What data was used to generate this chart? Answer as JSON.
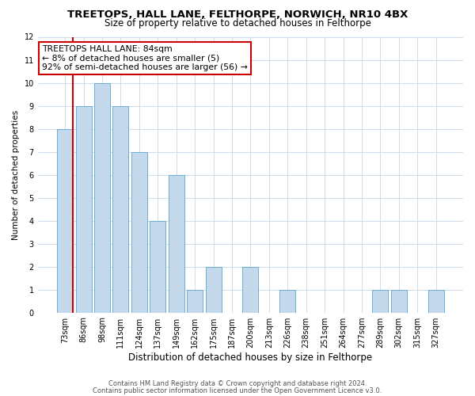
{
  "title": "TREETOPS, HALL LANE, FELTHORPE, NORWICH, NR10 4BX",
  "subtitle": "Size of property relative to detached houses in Felthorpe",
  "xlabel": "Distribution of detached houses by size in Felthorpe",
  "ylabel": "Number of detached properties",
  "bar_labels": [
    "73sqm",
    "86sqm",
    "98sqm",
    "111sqm",
    "124sqm",
    "137sqm",
    "149sqm",
    "162sqm",
    "175sqm",
    "187sqm",
    "200sqm",
    "213sqm",
    "226sqm",
    "238sqm",
    "251sqm",
    "264sqm",
    "277sqm",
    "289sqm",
    "302sqm",
    "315sqm",
    "327sqm"
  ],
  "bar_values": [
    8,
    9,
    10,
    9,
    7,
    4,
    6,
    1,
    2,
    0,
    2,
    0,
    1,
    0,
    0,
    0,
    0,
    1,
    1,
    0,
    1
  ],
  "bar_color": "#c5d9ec",
  "bar_edge_color": "#6aaed6",
  "highlight_edge_color": "#cc0000",
  "ylim": [
    0,
    12
  ],
  "yticks": [
    0,
    1,
    2,
    3,
    4,
    5,
    6,
    7,
    8,
    9,
    10,
    11,
    12
  ],
  "annotation_title": "TREETOPS HALL LANE: 84sqm",
  "annotation_line1": "← 8% of detached houses are smaller (5)",
  "annotation_line2": "92% of semi-detached houses are larger (56) →",
  "annotation_box_edge": "#cc0000",
  "footer_line1": "Contains HM Land Registry data © Crown copyright and database right 2024.",
  "footer_line2": "Contains public sector information licensed under the Open Government Licence v3.0.",
  "grid_color": "#c8d8e8",
  "background_color": "#ffffff",
  "title_fontsize": 9.5,
  "subtitle_fontsize": 8.5,
  "xlabel_fontsize": 8.5,
  "ylabel_fontsize": 7.5,
  "tick_fontsize": 7,
  "annotation_fontsize": 7.8,
  "footer_fontsize": 6
}
